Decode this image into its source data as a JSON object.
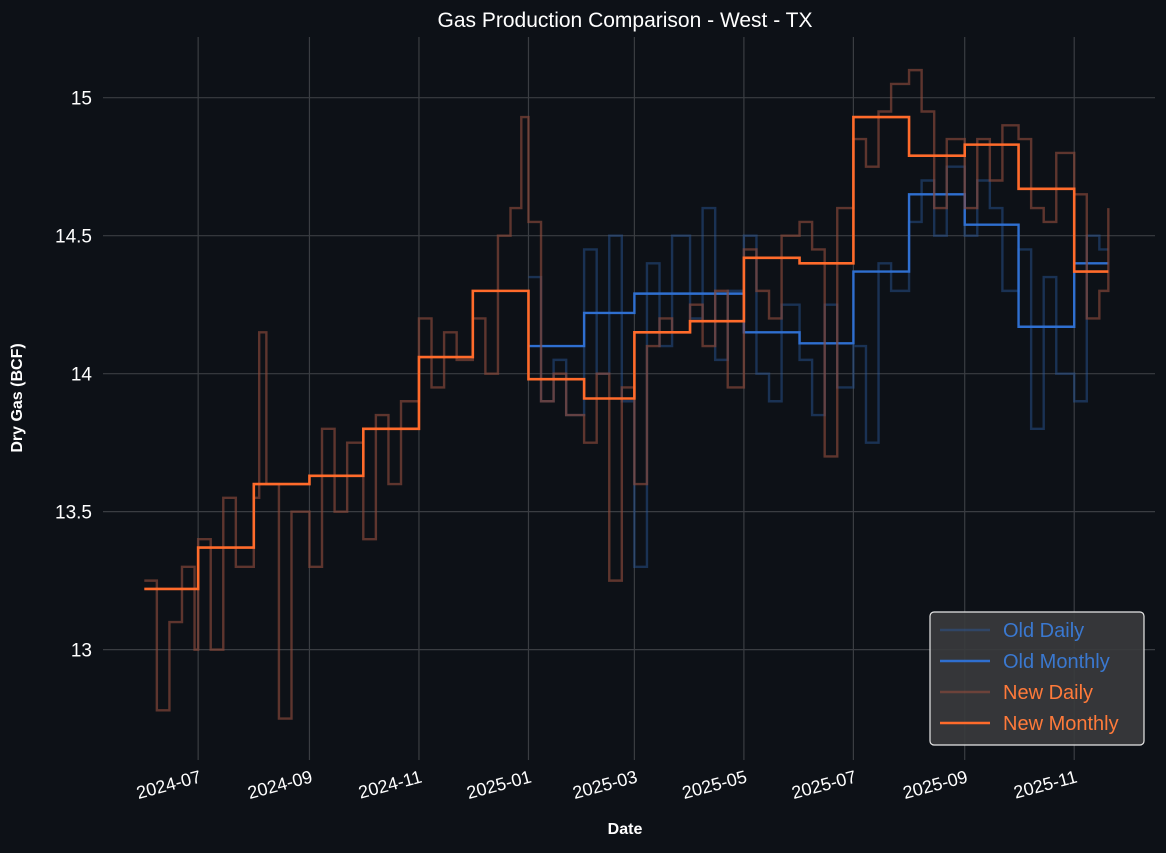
{
  "chart_data": {
    "type": "line",
    "title": "Gas Production Comparison - West - TX",
    "xlabel": "Date",
    "ylabel": "Dry Gas (BCF)",
    "xlim": [
      "2024-05-09",
      "2025-12-16"
    ],
    "ylim": [
      12.6,
      15.22
    ],
    "grid": true,
    "legend_placement": "bottom-right",
    "x_ticks": [
      "2024-07",
      "2024-09",
      "2024-11",
      "2025-01",
      "2025-03",
      "2025-05",
      "2025-07",
      "2025-09",
      "2025-11"
    ],
    "y_ticks": [
      13,
      13.5,
      14,
      14.5,
      15
    ],
    "y_tick_labels": [
      "13",
      "13.5",
      "14",
      "14.5",
      "15"
    ],
    "colors": {
      "background": "#0d1117",
      "old_daily": "#2a5aa0",
      "old_monthly": "#2f6fd0",
      "new_daily": "#8a4a3a",
      "new_monthly": "#ff6b2b",
      "grid": "#3a3d42"
    },
    "series": [
      {
        "name": "Old Daily",
        "style": "step",
        "points": [
          [
            "2025-01-01",
            14.35
          ],
          [
            "2025-01-08",
            13.9
          ],
          [
            "2025-01-15",
            14.05
          ],
          [
            "2025-01-22",
            13.85
          ],
          [
            "2025-02-01",
            14.45
          ],
          [
            "2025-02-08",
            14.0
          ],
          [
            "2025-02-15",
            14.5
          ],
          [
            "2025-02-22",
            13.9
          ],
          [
            "2025-03-01",
            13.3
          ],
          [
            "2025-03-08",
            14.4
          ],
          [
            "2025-03-15",
            14.1
          ],
          [
            "2025-03-22",
            14.5
          ],
          [
            "2025-04-01",
            14.2
          ],
          [
            "2025-04-08",
            14.6
          ],
          [
            "2025-04-15",
            14.05
          ],
          [
            "2025-04-22",
            14.3
          ],
          [
            "2025-05-01",
            14.5
          ],
          [
            "2025-05-08",
            14.0
          ],
          [
            "2025-05-15",
            13.9
          ],
          [
            "2025-05-22",
            14.25
          ],
          [
            "2025-06-01",
            14.05
          ],
          [
            "2025-06-08",
            13.85
          ],
          [
            "2025-06-15",
            14.25
          ],
          [
            "2025-06-22",
            13.95
          ],
          [
            "2025-07-01",
            14.1
          ],
          [
            "2025-07-08",
            13.75
          ],
          [
            "2025-07-15",
            14.4
          ],
          [
            "2025-07-22",
            14.3
          ],
          [
            "2025-08-01",
            14.55
          ],
          [
            "2025-08-08",
            14.7
          ],
          [
            "2025-08-15",
            14.5
          ],
          [
            "2025-08-22",
            14.75
          ],
          [
            "2025-09-01",
            14.5
          ],
          [
            "2025-09-08",
            14.7
          ],
          [
            "2025-09-15",
            14.6
          ],
          [
            "2025-09-22",
            14.3
          ],
          [
            "2025-10-01",
            14.45
          ],
          [
            "2025-10-08",
            13.8
          ],
          [
            "2025-10-15",
            14.35
          ],
          [
            "2025-10-22",
            14.0
          ],
          [
            "2025-11-01",
            13.9
          ],
          [
            "2025-11-08",
            14.5
          ],
          [
            "2025-11-15",
            14.45
          ],
          [
            "2025-11-20",
            14.45
          ]
        ]
      },
      {
        "name": "Old Monthly",
        "style": "step",
        "points": [
          [
            "2025-01-01",
            14.1
          ],
          [
            "2025-02-01",
            14.22
          ],
          [
            "2025-03-01",
            14.29
          ],
          [
            "2025-04-01",
            14.29
          ],
          [
            "2025-05-01",
            14.15
          ],
          [
            "2025-06-01",
            14.11
          ],
          [
            "2025-07-01",
            14.37
          ],
          [
            "2025-08-01",
            14.65
          ],
          [
            "2025-09-01",
            14.54
          ],
          [
            "2025-10-01",
            14.17
          ],
          [
            "2025-11-01",
            14.4
          ],
          [
            "2025-11-20",
            14.4
          ]
        ]
      },
      {
        "name": "New Daily",
        "style": "step",
        "points": [
          [
            "2024-06-01",
            13.25
          ],
          [
            "2024-06-08",
            12.78
          ],
          [
            "2024-06-15",
            13.1
          ],
          [
            "2024-06-22",
            13.3
          ],
          [
            "2024-06-29",
            13.0
          ],
          [
            "2024-07-01",
            13.4
          ],
          [
            "2024-07-08",
            13.0
          ],
          [
            "2024-07-15",
            13.55
          ],
          [
            "2024-07-22",
            13.3
          ],
          [
            "2024-08-01",
            13.55
          ],
          [
            "2024-08-04",
            14.15
          ],
          [
            "2024-08-08",
            13.6
          ],
          [
            "2024-08-15",
            12.75
          ],
          [
            "2024-08-22",
            13.5
          ],
          [
            "2024-09-01",
            13.3
          ],
          [
            "2024-09-08",
            13.8
          ],
          [
            "2024-09-15",
            13.5
          ],
          [
            "2024-09-22",
            13.75
          ],
          [
            "2024-10-01",
            13.4
          ],
          [
            "2024-10-08",
            13.85
          ],
          [
            "2024-10-15",
            13.6
          ],
          [
            "2024-10-22",
            13.9
          ],
          [
            "2024-11-01",
            14.2
          ],
          [
            "2024-11-08",
            13.95
          ],
          [
            "2024-11-15",
            14.15
          ],
          [
            "2024-11-22",
            14.05
          ],
          [
            "2024-12-01",
            14.2
          ],
          [
            "2024-12-08",
            14.0
          ],
          [
            "2024-12-15",
            14.5
          ],
          [
            "2024-12-22",
            14.6
          ],
          [
            "2024-12-28",
            14.93
          ],
          [
            "2025-01-01",
            14.55
          ],
          [
            "2025-01-08",
            13.9
          ],
          [
            "2025-01-15",
            14.0
          ],
          [
            "2025-01-22",
            13.85
          ],
          [
            "2025-02-01",
            13.75
          ],
          [
            "2025-02-08",
            14.0
          ],
          [
            "2025-02-15",
            13.25
          ],
          [
            "2025-02-22",
            13.95
          ],
          [
            "2025-03-01",
            13.6
          ],
          [
            "2025-03-08",
            14.1
          ],
          [
            "2025-03-15",
            14.2
          ],
          [
            "2025-03-22",
            14.15
          ],
          [
            "2025-04-01",
            14.25
          ],
          [
            "2025-04-08",
            14.1
          ],
          [
            "2025-04-15",
            14.3
          ],
          [
            "2025-04-22",
            13.95
          ],
          [
            "2025-05-01",
            14.45
          ],
          [
            "2025-05-08",
            14.3
          ],
          [
            "2025-05-15",
            14.2
          ],
          [
            "2025-05-22",
            14.5
          ],
          [
            "2025-06-01",
            14.55
          ],
          [
            "2025-06-08",
            14.45
          ],
          [
            "2025-06-15",
            13.7
          ],
          [
            "2025-06-22",
            14.6
          ],
          [
            "2025-07-01",
            14.85
          ],
          [
            "2025-07-08",
            14.75
          ],
          [
            "2025-07-15",
            14.95
          ],
          [
            "2025-07-22",
            15.05
          ],
          [
            "2025-08-01",
            15.1
          ],
          [
            "2025-08-08",
            14.95
          ],
          [
            "2025-08-15",
            14.6
          ],
          [
            "2025-08-22",
            14.85
          ],
          [
            "2025-09-01",
            14.6
          ],
          [
            "2025-09-08",
            14.85
          ],
          [
            "2025-09-15",
            14.7
          ],
          [
            "2025-09-22",
            14.9
          ],
          [
            "2025-10-01",
            14.85
          ],
          [
            "2025-10-08",
            14.6
          ],
          [
            "2025-10-15",
            14.55
          ],
          [
            "2025-10-22",
            14.8
          ],
          [
            "2025-11-01",
            14.65
          ],
          [
            "2025-11-08",
            14.2
          ],
          [
            "2025-11-15",
            14.3
          ],
          [
            "2025-11-20",
            14.6
          ]
        ]
      },
      {
        "name": "New Monthly",
        "style": "step",
        "points": [
          [
            "2024-06-01",
            13.22
          ],
          [
            "2024-07-01",
            13.37
          ],
          [
            "2024-08-01",
            13.6
          ],
          [
            "2024-09-01",
            13.63
          ],
          [
            "2024-10-01",
            13.8
          ],
          [
            "2024-11-01",
            14.06
          ],
          [
            "2024-12-01",
            14.3
          ],
          [
            "2025-01-01",
            13.98
          ],
          [
            "2025-02-01",
            13.91
          ],
          [
            "2025-03-01",
            14.15
          ],
          [
            "2025-04-01",
            14.19
          ],
          [
            "2025-05-01",
            14.42
          ],
          [
            "2025-06-01",
            14.4
          ],
          [
            "2025-07-01",
            14.93
          ],
          [
            "2025-08-01",
            14.79
          ],
          [
            "2025-09-01",
            14.83
          ],
          [
            "2025-10-01",
            14.67
          ],
          [
            "2025-11-01",
            14.37
          ],
          [
            "2025-11-20",
            14.37
          ]
        ]
      }
    ]
  }
}
